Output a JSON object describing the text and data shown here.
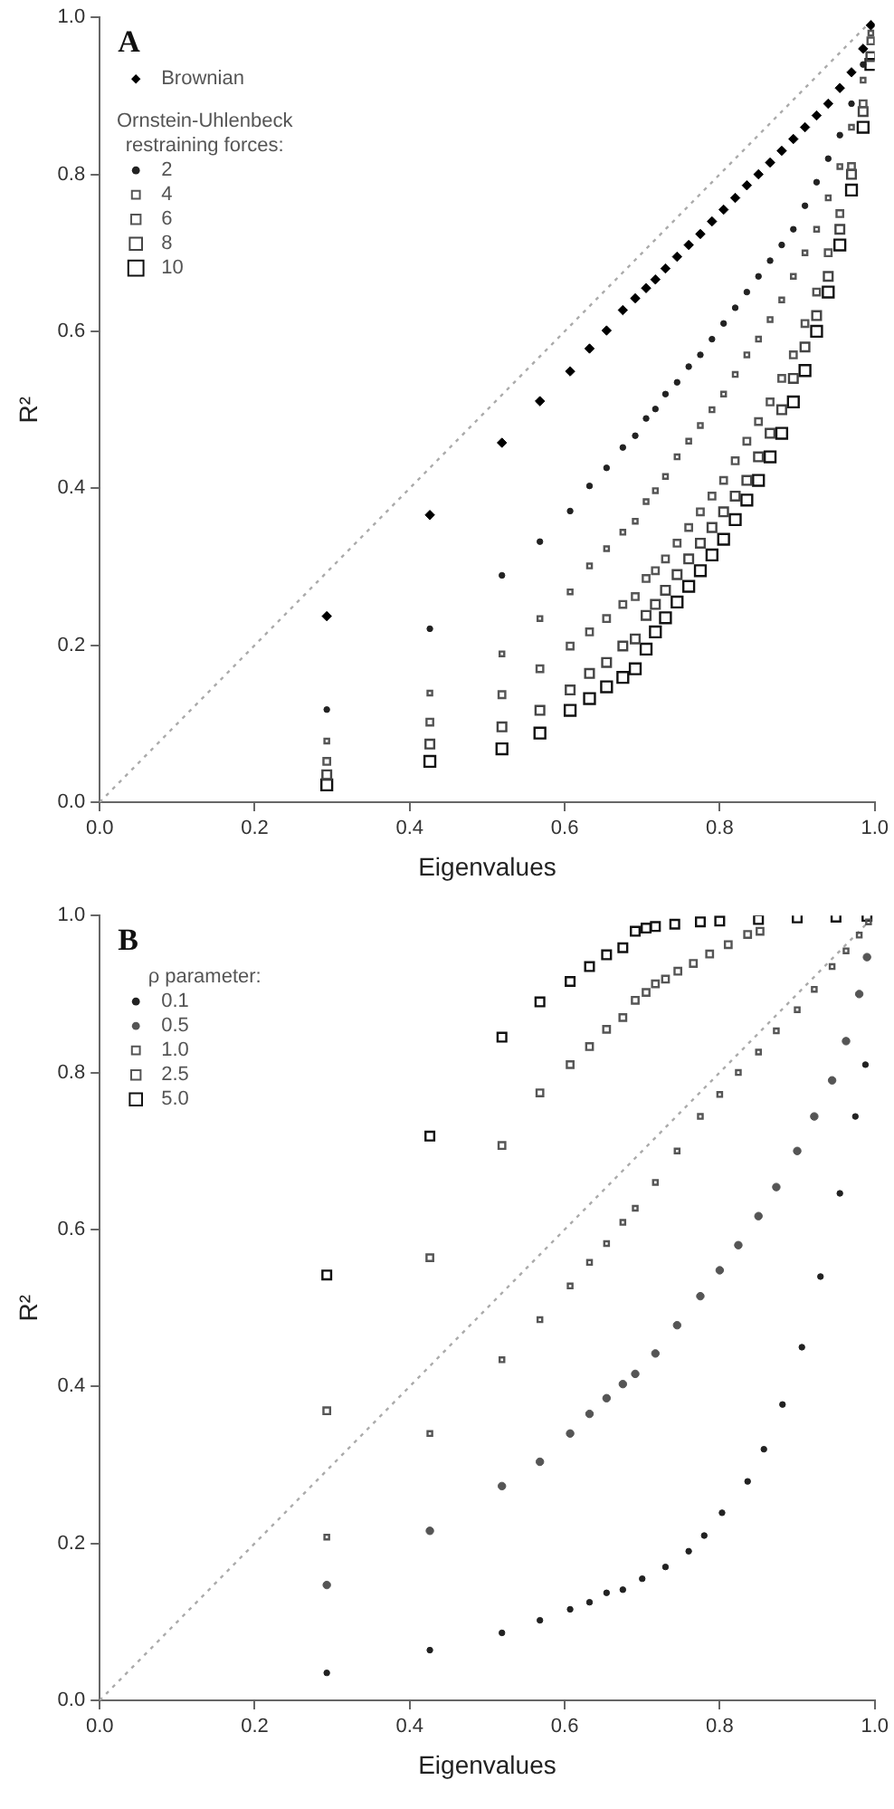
{
  "chart_data": [
    {
      "type": "scatter",
      "title": "A",
      "xlabel": "Eigenvalues",
      "ylabel": "R²",
      "legend_title": "Ornstein-Uhlenbeck restraining forces:",
      "legend": "top left",
      "grid": false,
      "xlim": [
        0,
        1
      ],
      "ylim": [
        0,
        1
      ],
      "xticks": [
        {
          "value": 0,
          "label": "0.0"
        },
        {
          "value": 0.2,
          "label": "0.2"
        },
        {
          "value": 0.4,
          "label": "0.4"
        },
        {
          "value": 0.6,
          "label": "0.6"
        },
        {
          "value": 0.8,
          "label": "0.8"
        },
        {
          "value": 1,
          "label": "1.0"
        }
      ],
      "yticks": [
        {
          "value": 0,
          "label": "0.0"
        },
        {
          "value": 0.2,
          "label": "0.2"
        },
        {
          "value": 0.4,
          "label": "0.4"
        },
        {
          "value": 0.6,
          "label": "0.6"
        },
        {
          "value": 0.8,
          "label": "0.8"
        },
        {
          "value": 1,
          "label": "1.0"
        }
      ],
      "x": [
        0.293,
        0.426,
        0.519,
        0.568,
        0.607,
        0.632,
        0.654,
        0.675,
        0.691,
        0.705,
        0.717,
        0.73,
        0.745,
        0.76,
        0.775,
        0.79,
        0.805,
        0.82,
        0.835,
        0.85,
        0.865,
        0.88,
        0.895,
        0.91,
        0.925,
        0.94,
        0.955,
        0.97,
        0.985,
        0.995
      ],
      "series": [
        {
          "type": "line",
          "color": "#aaaaaa",
          "line_style": "dotted",
          "marker": "none",
          "x": [
            0,
            1
          ],
          "values": [
            0,
            1
          ]
        },
        {
          "name": "Brownian",
          "color": "#000000",
          "marker": "diamond",
          "values": [
            0.237,
            0.366,
            0.458,
            0.511,
            0.549,
            0.578,
            0.601,
            0.627,
            0.642,
            0.655,
            0.666,
            0.68,
            0.695,
            0.71,
            0.724,
            0.74,
            0.755,
            0.77,
            0.786,
            0.8,
            0.815,
            0.83,
            0.845,
            0.86,
            0.875,
            0.89,
            0.91,
            0.93,
            0.96,
            0.99
          ]
        },
        {
          "name": "2",
          "color": "#222222",
          "marker": "circle",
          "values": [
            0.118,
            0.221,
            0.289,
            0.332,
            0.371,
            0.403,
            0.426,
            0.452,
            0.467,
            0.489,
            0.501,
            0.52,
            0.535,
            0.555,
            0.57,
            0.59,
            0.61,
            0.63,
            0.65,
            0.67,
            0.69,
            0.71,
            0.73,
            0.76,
            0.79,
            0.82,
            0.85,
            0.89,
            0.94,
            null
          ]
        },
        {
          "name": "4",
          "color": "#555555",
          "marker": "square",
          "values": [
            0.078,
            0.139,
            0.189,
            0.234,
            0.268,
            0.301,
            0.323,
            0.344,
            0.358,
            0.383,
            0.397,
            0.415,
            0.44,
            0.46,
            0.48,
            0.5,
            0.52,
            0.545,
            0.57,
            0.59,
            0.615,
            0.64,
            0.67,
            0.7,
            0.73,
            0.77,
            0.81,
            0.86,
            0.92,
            0.98
          ]
        },
        {
          "name": "6",
          "color": "#555555",
          "marker": "square",
          "values": [
            0.052,
            0.102,
            0.137,
            0.17,
            0.199,
            0.217,
            0.234,
            0.252,
            0.262,
            0.285,
            0.295,
            0.31,
            0.33,
            0.35,
            0.37,
            0.39,
            0.41,
            0.435,
            0.46,
            0.485,
            0.51,
            0.54,
            0.57,
            0.61,
            0.65,
            0.7,
            0.75,
            0.81,
            0.89,
            0.97
          ]
        },
        {
          "name": "8",
          "color": "#444444",
          "marker": "square",
          "values": [
            0.035,
            0.074,
            0.096,
            0.117,
            0.143,
            0.164,
            0.178,
            0.199,
            0.208,
            0.238,
            0.252,
            0.27,
            0.29,
            0.31,
            0.33,
            0.35,
            0.37,
            0.39,
            0.41,
            0.44,
            0.47,
            0.5,
            0.54,
            0.58,
            0.62,
            0.67,
            0.73,
            0.8,
            0.88,
            0.95
          ]
        },
        {
          "name": "10",
          "color": "#111111",
          "marker": "square",
          "values": [
            0.022,
            0.052,
            0.068,
            0.088,
            0.117,
            0.132,
            0.147,
            0.159,
            0.17,
            0.195,
            0.217,
            0.235,
            0.255,
            0.275,
            0.295,
            0.315,
            0.335,
            0.36,
            0.385,
            0.41,
            0.44,
            0.47,
            0.51,
            0.55,
            0.6,
            0.65,
            0.71,
            0.78,
            0.86,
            0.94
          ]
        }
      ]
    },
    {
      "type": "scatter",
      "title": "B",
      "xlabel": "Eigenvalues",
      "ylabel": "R²",
      "legend_title": "ρ parameter:",
      "legend": "top left",
      "grid": false,
      "xlim": [
        0,
        1
      ],
      "ylim": [
        0,
        1
      ],
      "xticks": [
        {
          "value": 0,
          "label": "0.0"
        },
        {
          "value": 0.2,
          "label": "0.2"
        },
        {
          "value": 0.4,
          "label": "0.4"
        },
        {
          "value": 0.6,
          "label": "0.6"
        },
        {
          "value": 0.8,
          "label": "0.8"
        },
        {
          "value": 1,
          "label": "1.0"
        }
      ],
      "yticks": [
        {
          "value": 0,
          "label": "0.0"
        },
        {
          "value": 0.2,
          "label": "0.2"
        },
        {
          "value": 0.4,
          "label": "0.4"
        },
        {
          "value": 0.6,
          "label": "0.6"
        },
        {
          "value": 0.8,
          "label": "0.8"
        },
        {
          "value": 1,
          "label": "1.0"
        }
      ],
      "series": [
        {
          "type": "line",
          "color": "#aaaaaa",
          "line_style": "dotted",
          "marker": "none",
          "x": [
            0,
            1
          ],
          "values": [
            0,
            1
          ]
        },
        {
          "name": "0.1",
          "color": "#222222",
          "marker": "circle",
          "x": [
            0.293,
            0.426,
            0.519,
            0.568,
            0.607,
            0.632,
            0.654,
            0.675,
            0.7,
            0.73,
            0.76,
            0.78,
            0.803,
            0.836,
            0.857,
            0.881,
            0.906,
            0.93,
            0.955,
            0.975,
            0.988
          ],
          "values": [
            0.035,
            0.064,
            0.086,
            0.102,
            0.116,
            0.125,
            0.137,
            0.141,
            0.155,
            0.17,
            0.19,
            0.21,
            0.239,
            0.279,
            0.32,
            0.377,
            0.45,
            0.54,
            0.646,
            0.744,
            0.81
          ]
        },
        {
          "name": "0.5",
          "color": "#555555",
          "marker": "circle",
          "x": [
            0.293,
            0.426,
            0.519,
            0.568,
            0.607,
            0.632,
            0.654,
            0.675,
            0.691,
            0.717,
            0.745,
            0.775,
            0.8,
            0.824,
            0.85,
            0.873,
            0.9,
            0.922,
            0.945,
            0.963,
            0.98,
            0.99
          ],
          "values": [
            0.147,
            0.216,
            0.273,
            0.304,
            0.34,
            0.365,
            0.385,
            0.403,
            0.416,
            0.442,
            0.478,
            0.515,
            0.548,
            0.58,
            0.617,
            0.654,
            0.7,
            0.744,
            0.79,
            0.84,
            0.9,
            0.947
          ]
        },
        {
          "name": "1.0",
          "color": "#555555",
          "marker": "square",
          "x": [
            0.293,
            0.426,
            0.519,
            0.568,
            0.607,
            0.632,
            0.654,
            0.675,
            0.691,
            0.717,
            0.745,
            0.775,
            0.8,
            0.824,
            0.85,
            0.873,
            0.9,
            0.922,
            0.945,
            0.963,
            0.98,
            0.992
          ],
          "values": [
            0.208,
            0.34,
            0.434,
            0.485,
            0.528,
            0.558,
            0.582,
            0.609,
            0.627,
            0.66,
            0.7,
            0.744,
            0.772,
            0.8,
            0.826,
            0.853,
            0.88,
            0.906,
            0.935,
            0.955,
            0.975,
            0.992
          ]
        },
        {
          "name": "2.5",
          "color": "#555555",
          "marker": "square",
          "x": [
            0.293,
            0.426,
            0.519,
            0.568,
            0.607,
            0.632,
            0.654,
            0.675,
            0.691,
            0.705,
            0.717,
            0.73,
            0.746,
            0.766,
            0.787,
            0.811,
            0.836,
            0.852
          ],
          "values": [
            0.369,
            0.564,
            0.707,
            0.774,
            0.81,
            0.833,
            0.855,
            0.87,
            0.892,
            0.902,
            0.913,
            0.919,
            0.929,
            0.939,
            0.951,
            0.963,
            0.976,
            0.98
          ]
        },
        {
          "name": "5.0",
          "color": "#111111",
          "marker": "square",
          "x": [
            0.293,
            0.426,
            0.519,
            0.568,
            0.607,
            0.632,
            0.654,
            0.675,
            0.691,
            0.705,
            0.717,
            0.742,
            0.775,
            0.8,
            0.85,
            0.9,
            0.95,
            0.99
          ],
          "values": [
            0.542,
            0.719,
            0.845,
            0.89,
            0.916,
            0.935,
            0.95,
            0.959,
            0.98,
            0.984,
            0.986,
            0.989,
            0.992,
            0.993,
            0.995,
            0.997,
            0.998,
            0.999
          ]
        }
      ]
    }
  ]
}
